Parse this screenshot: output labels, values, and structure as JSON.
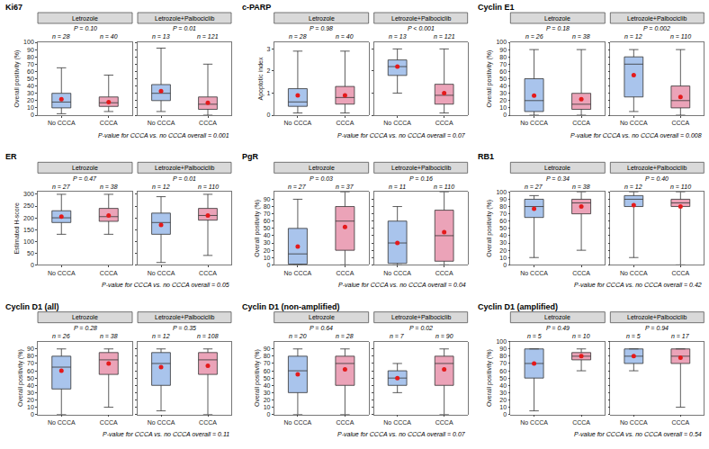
{
  "chart_data": [
    {
      "type": "box",
      "title": "Ki67",
      "y_label": "Overall positivity (%)",
      "ylim": [
        0,
        100
      ],
      "yticks": [
        0,
        10,
        20,
        30,
        40,
        50,
        60,
        70,
        80,
        90,
        100
      ],
      "categories": [
        "No CCCA",
        "CCCA"
      ],
      "colors": [
        "#a9c4ec",
        "#eba3b8"
      ],
      "footnote": "P-value for CCCA vs. no CCCA overall = 0.001",
      "facets": [
        {
          "name": "Letrozole",
          "p_value": "P = 0.10",
          "n_labels": [
            "n = 28",
            "n = 40"
          ],
          "boxes": [
            {
              "q1": 10,
              "median": 18,
              "q3": 30,
              "lowerfence": 2,
              "upperfence": 65,
              "mean": 22
            },
            {
              "q1": 12,
              "median": 17,
              "q3": 25,
              "lowerfence": 5,
              "upperfence": 55,
              "mean": 18
            }
          ]
        },
        {
          "name": "Letrozole+Palbociclib",
          "p_value": "P = 0.01",
          "n_labels": [
            "n = 13",
            "n = 121"
          ],
          "boxes": [
            {
              "q1": 20,
              "median": 30,
              "q3": 42,
              "lowerfence": 5,
              "upperfence": 92,
              "mean": 33
            },
            {
              "q1": 8,
              "median": 15,
              "q3": 25,
              "lowerfence": 0,
              "upperfence": 70,
              "mean": 17
            }
          ]
        }
      ]
    },
    {
      "type": "box",
      "title": "c-PARP",
      "y_label": "Apoptotic index",
      "ylim": [
        0,
        3.3
      ],
      "yticks": [
        0,
        1,
        2,
        3
      ],
      "categories": [
        "No CCCA",
        "CCCA"
      ],
      "colors": [
        "#a9c4ec",
        "#eba3b8"
      ],
      "footnote": "P-value for CCCA vs. no CCCA overall = 0.07",
      "facets": [
        {
          "name": "Letrozole",
          "p_value": "P = 0.98",
          "n_labels": [
            "n = 28",
            "n = 40"
          ],
          "boxes": [
            {
              "q1": 0.4,
              "median": 0.6,
              "q3": 1.2,
              "lowerfence": 0.1,
              "upperfence": 2.9,
              "mean": 0.9
            },
            {
              "q1": 0.5,
              "median": 0.8,
              "q3": 1.3,
              "lowerfence": 0.1,
              "upperfence": 2.9,
              "mean": 0.9
            }
          ]
        },
        {
          "name": "Letrozole+Palbociclib",
          "p_value": "P < 0.001",
          "n_labels": [
            "n = 13",
            "n = 121"
          ],
          "boxes": [
            {
              "q1": 1.8,
              "median": 2.2,
              "q3": 2.5,
              "lowerfence": 1.0,
              "upperfence": 3.0,
              "mean": 2.2
            },
            {
              "q1": 0.5,
              "median": 0.9,
              "q3": 1.4,
              "lowerfence": 0.1,
              "upperfence": 3.0,
              "mean": 1.0
            }
          ]
        }
      ]
    },
    {
      "type": "box",
      "title": "Cyclin E1",
      "y_label": "Overall positivity (%)",
      "ylim": [
        0,
        100
      ],
      "yticks": [
        0,
        10,
        20,
        30,
        40,
        50,
        60,
        70,
        80,
        90,
        100
      ],
      "categories": [
        "No CCCA",
        "CCCA"
      ],
      "colors": [
        "#a9c4ec",
        "#eba3b8"
      ],
      "footnote": "P-value for CCCA vs. no CCCA overall = 0.008",
      "facets": [
        {
          "name": "Letrozole",
          "p_value": "P = 0.18",
          "n_labels": [
            "n = 26",
            "n = 38"
          ],
          "boxes": [
            {
              "q1": 5,
              "median": 20,
              "q3": 50,
              "lowerfence": 0,
              "upperfence": 90,
              "mean": 27
            },
            {
              "q1": 8,
              "median": 15,
              "q3": 30,
              "lowerfence": 0,
              "upperfence": 90,
              "mean": 22
            }
          ]
        },
        {
          "name": "Letrozole+Palbociclib",
          "p_value": "P = 0.002",
          "n_labels": [
            "n = 12",
            "n = 110"
          ],
          "boxes": [
            {
              "q1": 25,
              "median": 70,
              "q3": 80,
              "lowerfence": 5,
              "upperfence": 90,
              "mean": 55
            },
            {
              "q1": 10,
              "median": 20,
              "q3": 40,
              "lowerfence": 0,
              "upperfence": 90,
              "mean": 25
            }
          ]
        }
      ]
    },
    {
      "type": "box",
      "title": "ER",
      "y_label": "Estimated H-score",
      "ylim": [
        0,
        310
      ],
      "yticks": [
        0,
        50,
        100,
        150,
        200,
        250,
        300
      ],
      "categories": [
        "No CCCA",
        "CCCA"
      ],
      "colors": [
        "#a9c4ec",
        "#eba3b8"
      ],
      "footnote": "P-value for CCCA vs. no CCCA overall = 0.05",
      "facets": [
        {
          "name": "Letrozole",
          "p_value": "P = 0.47",
          "n_labels": [
            "n = 27",
            "n = 38"
          ],
          "boxes": [
            {
              "q1": 180,
              "median": 200,
              "q3": 230,
              "lowerfence": 130,
              "upperfence": 300,
              "mean": 205
            },
            {
              "q1": 185,
              "median": 205,
              "q3": 240,
              "lowerfence": 130,
              "upperfence": 300,
              "mean": 210
            }
          ]
        },
        {
          "name": "Letrozole+Palbociclib",
          "p_value": "P = 0.01",
          "n_labels": [
            "n = 12",
            "n = 110"
          ],
          "boxes": [
            {
              "q1": 130,
              "median": 180,
              "q3": 220,
              "lowerfence": 10,
              "upperfence": 290,
              "mean": 170
            },
            {
              "q1": 190,
              "median": 210,
              "q3": 240,
              "lowerfence": 40,
              "upperfence": 300,
              "mean": 210
            }
          ]
        }
      ]
    },
    {
      "type": "box",
      "title": "PgR",
      "y_label": "Overall positivity (%)",
      "ylim": [
        0,
        100
      ],
      "yticks": [
        0,
        10,
        20,
        30,
        40,
        50,
        60,
        70,
        80,
        90
      ],
      "categories": [
        "No CCCA",
        "CCCA"
      ],
      "colors": [
        "#a9c4ec",
        "#eba3b8"
      ],
      "footnote": "P-value for CCCA vs. no CCCA overall = 0.04",
      "facets": [
        {
          "name": "Letrozole",
          "p_value": "P = 0.03",
          "n_labels": [
            "n = 27",
            "n = 37"
          ],
          "boxes": [
            {
              "q1": 1,
              "median": 15,
              "q3": 50,
              "lowerfence": 0,
              "upperfence": 90,
              "mean": 25
            },
            {
              "q1": 20,
              "median": 60,
              "q3": 80,
              "lowerfence": 0,
              "upperfence": 100,
              "mean": 52
            }
          ]
        },
        {
          "name": "Letrozole+Palbociclib",
          "p_value": "P = 0.16",
          "n_labels": [
            "n = 11",
            "n = 110"
          ],
          "boxes": [
            {
              "q1": 2,
              "median": 30,
              "q3": 60,
              "lowerfence": 0,
              "upperfence": 80,
              "mean": 30
            },
            {
              "q1": 5,
              "median": 40,
              "q3": 75,
              "lowerfence": 0,
              "upperfence": 100,
              "mean": 45
            }
          ]
        }
      ]
    },
    {
      "type": "box",
      "title": "RB1",
      "y_label": "Overall positivity (%)",
      "ylim": [
        0,
        100
      ],
      "yticks": [
        0,
        10,
        20,
        30,
        40,
        50,
        60,
        70,
        80,
        90,
        100
      ],
      "categories": [
        "No CCCA",
        "CCCA"
      ],
      "colors": [
        "#a9c4ec",
        "#eba3b8"
      ],
      "footnote": "P-value for CCCA vs. no CCCA overall = 0.42",
      "facets": [
        {
          "name": "Letrozole",
          "p_value": "P = 0.34",
          "n_labels": [
            "n = 27",
            "n = 38"
          ],
          "boxes": [
            {
              "q1": 65,
              "median": 80,
              "q3": 90,
              "lowerfence": 10,
              "upperfence": 95,
              "mean": 77
            },
            {
              "q1": 70,
              "median": 85,
              "q3": 90,
              "lowerfence": 20,
              "upperfence": 100,
              "mean": 80
            }
          ]
        },
        {
          "name": "Letrozole+Palbociclib",
          "p_value": "P = 0.40",
          "n_labels": [
            "n = 12",
            "n = 110"
          ],
          "boxes": [
            {
              "q1": 80,
              "median": 90,
              "q3": 95,
              "lowerfence": 10,
              "upperfence": 100,
              "mean": 82
            },
            {
              "q1": 80,
              "median": 85,
              "q3": 90,
              "lowerfence": 0,
              "upperfence": 100,
              "mean": 80
            }
          ]
        }
      ]
    },
    {
      "type": "box",
      "title": "Cyclin D1 (all)",
      "y_label": "Overall positivity (%)",
      "ylim": [
        0,
        100
      ],
      "yticks": [
        0,
        10,
        20,
        30,
        40,
        50,
        60,
        70,
        80,
        90
      ],
      "categories": [
        "No CCCA",
        "CCCA"
      ],
      "colors": [
        "#a9c4ec",
        "#eba3b8"
      ],
      "footnote": "P-value for CCCA vs. no CCCA overall = 0.11",
      "facets": [
        {
          "name": "Letrozole",
          "p_value": "P = 0.28",
          "n_labels": [
            "n = 26",
            "n = 38"
          ],
          "boxes": [
            {
              "q1": 35,
              "median": 65,
              "q3": 80,
              "lowerfence": 0,
              "upperfence": 90,
              "mean": 60
            },
            {
              "q1": 55,
              "median": 75,
              "q3": 85,
              "lowerfence": 10,
              "upperfence": 90,
              "mean": 70
            }
          ]
        },
        {
          "name": "Letrozole+Palbociclib",
          "p_value": "P = 0.35",
          "n_labels": [
            "n = 12",
            "n = 108"
          ],
          "boxes": [
            {
              "q1": 40,
              "median": 70,
              "q3": 85,
              "lowerfence": 5,
              "upperfence": 90,
              "mean": 65
            },
            {
              "q1": 55,
              "median": 75,
              "q3": 85,
              "lowerfence": 0,
              "upperfence": 90,
              "mean": 67
            }
          ]
        }
      ]
    },
    {
      "type": "box",
      "title": "Cyclin D1 (non-amplified)",
      "y_label": "Overall positivity (%)",
      "ylim": [
        0,
        100
      ],
      "yticks": [
        0,
        10,
        20,
        30,
        40,
        50,
        60,
        70,
        80,
        90
      ],
      "categories": [
        "No CCCA",
        "CCCA"
      ],
      "colors": [
        "#a9c4ec",
        "#eba3b8"
      ],
      "footnote": "P-value for CCCA vs. no CCCA overall = 0.07",
      "facets": [
        {
          "name": "Letrozole",
          "p_value": "P = 0.64",
          "n_labels": [
            "n = 20",
            "n = 28"
          ],
          "boxes": [
            {
              "q1": 30,
              "median": 60,
              "q3": 80,
              "lowerfence": 0,
              "upperfence": 90,
              "mean": 55
            },
            {
              "q1": 40,
              "median": 70,
              "q3": 80,
              "lowerfence": 0,
              "upperfence": 90,
              "mean": 62
            }
          ]
        },
        {
          "name": "Letrozole+Palbociclib",
          "p_value": "P = 0.02",
          "n_labels": [
            "n = 7",
            "n = 90"
          ],
          "boxes": [
            {
              "q1": 40,
              "median": 50,
              "q3": 60,
              "lowerfence": 30,
              "upperfence": 70,
              "mean": 50
            },
            {
              "q1": 40,
              "median": 70,
              "q3": 80,
              "lowerfence": 0,
              "upperfence": 90,
              "mean": 62
            }
          ]
        }
      ]
    },
    {
      "type": "box",
      "title": "Cyclin D1 (amplified)",
      "y_label": "Overall positivity (%)",
      "ylim": [
        0,
        100
      ],
      "yticks": [
        0,
        10,
        20,
        30,
        40,
        50,
        60,
        70,
        80,
        90,
        100
      ],
      "categories": [
        "No CCCA",
        "CCCA"
      ],
      "colors": [
        "#a9c4ec",
        "#eba3b8"
      ],
      "footnote": "P-value for CCCA vs. no CCCA overall = 0.54",
      "facets": [
        {
          "name": "Letrozole",
          "p_value": "P = 0.49",
          "n_labels": [
            "n = 5",
            "n = 10"
          ],
          "boxes": [
            {
              "q1": 50,
              "median": 70,
              "q3": 90,
              "lowerfence": 5,
              "upperfence": 90,
              "mean": 70
            },
            {
              "q1": 75,
              "median": 80,
              "q3": 85,
              "lowerfence": 60,
              "upperfence": 90,
              "mean": 80
            }
          ]
        },
        {
          "name": "Letrozole+Palbociclib",
          "p_value": "P = 0.94",
          "n_labels": [
            "n = 5",
            "n = 17"
          ],
          "boxes": [
            {
              "q1": 70,
              "median": 80,
              "q3": 90,
              "lowerfence": 60,
              "upperfence": 90,
              "mean": 80
            },
            {
              "q1": 70,
              "median": 80,
              "q3": 90,
              "lowerfence": 10,
              "upperfence": 90,
              "mean": 78
            }
          ]
        }
      ]
    }
  ]
}
